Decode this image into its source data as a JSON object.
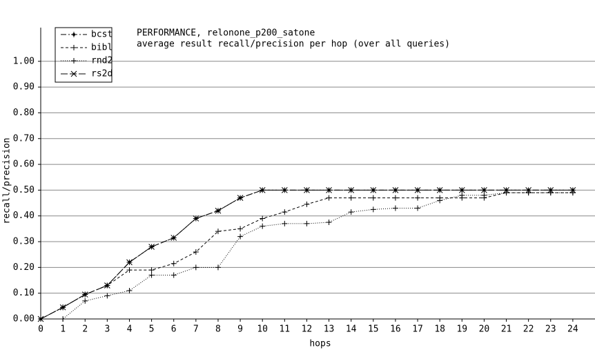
{
  "chart_data": {
    "type": "line",
    "title": "PERFORMANCE, relonone_p200_satone",
    "subtitle": "average result recall/precision per hop (over all queries)",
    "xlabel": "hops",
    "ylabel": "recall/precision",
    "x": [
      0,
      1,
      2,
      3,
      4,
      5,
      6,
      7,
      8,
      9,
      10,
      11,
      12,
      13,
      14,
      15,
      16,
      17,
      18,
      19,
      20,
      21,
      22,
      23,
      24
    ],
    "series": [
      {
        "name": "bcst",
        "color": "#000000",
        "marker": "dot",
        "dash": "8,3,2,3",
        "values": [
          0,
          0.045,
          0.095,
          0.13,
          0.22,
          0.28,
          0.315,
          0.39,
          0.42,
          0.47,
          0.5,
          0.5,
          0.5,
          0.5,
          0.5,
          0.5,
          0.5,
          0.5,
          0.5,
          0.5,
          0.5,
          0.5,
          0.5,
          0.5,
          0.5
        ]
      },
      {
        "name": "bibl",
        "color": "#000000",
        "marker": "plus",
        "dash": "4,3",
        "values": [
          0,
          0.045,
          0.095,
          0.13,
          0.19,
          0.19,
          0.215,
          0.26,
          0.34,
          0.35,
          0.39,
          0.415,
          0.445,
          0.47,
          0.47,
          0.47,
          0.47,
          0.47,
          0.47,
          0.47,
          0.47,
          0.49,
          0.49,
          0.49,
          0.49
        ]
      },
      {
        "name": "rnd2",
        "color": "#000000",
        "marker": "plus",
        "dash": "1,2",
        "values": [
          0,
          0,
          0.07,
          0.09,
          0.11,
          0.17,
          0.17,
          0.2,
          0.2,
          0.32,
          0.36,
          0.37,
          0.37,
          0.375,
          0.415,
          0.425,
          0.43,
          0.43,
          0.46,
          0.48,
          0.48,
          0.49,
          0.49,
          0.49,
          0.49
        ]
      },
      {
        "name": "rs2d",
        "color": "#000000",
        "marker": "cross",
        "dash": "10,3",
        "values": [
          0,
          0.045,
          0.095,
          0.13,
          0.22,
          0.28,
          0.315,
          0.39,
          0.42,
          0.47,
          0.5,
          0.5,
          0.5,
          0.5,
          0.5,
          0.5,
          0.5,
          0.5,
          0.5,
          0.5,
          0.5,
          0.5,
          0.5,
          0.5,
          0.5
        ]
      }
    ],
    "xlim": [
      0,
      25
    ],
    "ylim": [
      0,
      1.12
    ],
    "xticks": [
      0,
      1,
      2,
      3,
      4,
      5,
      6,
      7,
      8,
      9,
      10,
      11,
      12,
      13,
      14,
      15,
      16,
      17,
      18,
      19,
      20,
      21,
      22,
      23,
      24
    ],
    "yticks": [
      {
        "value": 0,
        "label": "0.00"
      },
      {
        "value": 0.1,
        "label": "0.10"
      },
      {
        "value": 0.2,
        "label": "0.20"
      },
      {
        "value": 0.3,
        "label": "0.30"
      },
      {
        "value": 0.4,
        "label": "0.40"
      },
      {
        "value": 0.5,
        "label": "0.50"
      },
      {
        "value": 0.6,
        "label": "0.60"
      },
      {
        "value": 0.7,
        "label": "0.70"
      },
      {
        "value": 0.8,
        "label": "0.80"
      },
      {
        "value": 0.9,
        "label": "0.90"
      },
      {
        "value": 1,
        "label": "1.00"
      }
    ],
    "grid": true,
    "legend": "top-left"
  }
}
